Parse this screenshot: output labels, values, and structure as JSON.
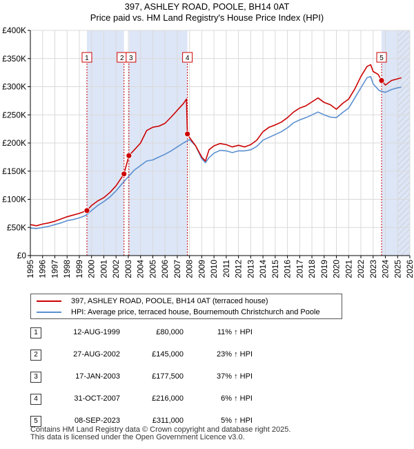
{
  "chart_data": {
    "type": "line",
    "title": "397, ASHLEY ROAD, POOLE, BH14 0AT",
    "subtitle": "Price paid vs. HM Land Registry's House Price Index (HPI)",
    "xlabel": "",
    "ylabel": "",
    "xlim": [
      1995,
      2026
    ],
    "ylim": [
      0,
      400000
    ],
    "y_ticks": [
      0,
      50000,
      100000,
      150000,
      200000,
      250000,
      300000,
      350000,
      400000
    ],
    "y_tick_labels": [
      "£0",
      "£50K",
      "£100K",
      "£150K",
      "£200K",
      "£250K",
      "£300K",
      "£350K",
      "£400K"
    ],
    "x_ticks": [
      1995,
      1996,
      1997,
      1998,
      1999,
      2000,
      2001,
      2002,
      2003,
      2004,
      2005,
      2006,
      2007,
      2008,
      2009,
      2010,
      2011,
      2012,
      2013,
      2014,
      2015,
      2016,
      2017,
      2018,
      2019,
      2020,
      2021,
      2022,
      2023,
      2024,
      2025,
      2026
    ],
    "x_tick_labels": [
      "1995",
      "1996",
      "1997",
      "1998",
      "1999",
      "2000",
      "2001",
      "2002",
      "2003",
      "2004",
      "2005",
      "2006",
      "2007",
      "2008",
      "2009",
      "2010",
      "2011",
      "2012",
      "2013",
      "2014",
      "2015",
      "2016",
      "2017",
      "2018",
      "2019",
      "2020",
      "2021",
      "2022",
      "2023",
      "2024",
      "2025",
      "2026"
    ],
    "grid": true,
    "shaded_periods": [
      [
        1999.62,
        2002.65
      ],
      [
        2003.05,
        2007.83
      ],
      [
        2023.69,
        2026
      ]
    ],
    "hatched_period": [
      2025.0,
      2026
    ],
    "series": [
      {
        "name": "397, ASHLEY ROAD, POOLE, BH14 0AT (terraced house)",
        "color": "#cc0000",
        "x": [
          1995.0,
          1995.5,
          1996.0,
          1996.5,
          1997.0,
          1997.5,
          1998.0,
          1998.5,
          1999.0,
          1999.62,
          2000.0,
          2000.5,
          2001.0,
          2001.5,
          2002.0,
          2002.65,
          2003.05,
          2003.5,
          2004.0,
          2004.5,
          2005.0,
          2005.5,
          2006.0,
          2006.5,
          2007.0,
          2007.5,
          2007.75,
          2007.83,
          2008.0,
          2008.5,
          2009.0,
          2009.3,
          2009.6,
          2010.0,
          2010.5,
          2011.0,
          2011.5,
          2012.0,
          2012.5,
          2013.0,
          2013.5,
          2014.0,
          2014.5,
          2015.0,
          2015.5,
          2016.0,
          2016.5,
          2017.0,
          2017.5,
          2018.0,
          2018.5,
          2019.0,
          2019.5,
          2020.0,
          2020.5,
          2021.0,
          2021.5,
          2022.0,
          2022.5,
          2022.8,
          2023.0,
          2023.4,
          2023.69,
          2024.0,
          2024.5,
          2025.0,
          2025.3
        ],
        "values": [
          55000,
          53000,
          56000,
          58000,
          61000,
          65000,
          69000,
          72000,
          75000,
          80000,
          89000,
          97000,
          103000,
          112000,
          124000,
          145000,
          177500,
          188000,
          200000,
          222000,
          228000,
          230000,
          235000,
          246000,
          258000,
          270000,
          278000,
          216000,
          210000,
          195000,
          175000,
          168000,
          188000,
          195000,
          199000,
          197000,
          193000,
          196000,
          193000,
          197000,
          205000,
          220000,
          228000,
          232000,
          237000,
          245000,
          255000,
          262000,
          266000,
          273000,
          280000,
          272000,
          268000,
          260000,
          270000,
          278000,
          296000,
          318000,
          336000,
          339000,
          327000,
          322000,
          311000,
          303000,
          311000,
          314000,
          316000
        ]
      },
      {
        "name": "HPI: Average price, terraced house, Bournemouth Christchurch and Poole",
        "color": "#5a8fd0",
        "x": [
          1995.0,
          1995.5,
          1996.0,
          1996.5,
          1997.0,
          1997.5,
          1998.0,
          1998.5,
          1999.0,
          1999.5,
          2000.0,
          2000.5,
          2001.0,
          2001.5,
          2002.0,
          2002.5,
          2003.0,
          2003.5,
          2004.0,
          2004.5,
          2005.0,
          2005.5,
          2006.0,
          2006.5,
          2007.0,
          2007.5,
          2008.0,
          2008.5,
          2009.0,
          2009.3,
          2009.6,
          2010.0,
          2010.5,
          2011.0,
          2011.5,
          2012.0,
          2012.5,
          2013.0,
          2013.5,
          2014.0,
          2014.5,
          2015.0,
          2015.5,
          2016.0,
          2016.5,
          2017.0,
          2017.5,
          2018.0,
          2018.5,
          2019.0,
          2019.5,
          2020.0,
          2020.5,
          2021.0,
          2021.5,
          2022.0,
          2022.5,
          2022.8,
          2023.0,
          2023.5,
          2024.0,
          2024.5,
          2025.0,
          2025.3
        ],
        "values": [
          49000,
          48000,
          50000,
          52000,
          55000,
          58000,
          62000,
          64000,
          67000,
          71000,
          80000,
          89000,
          96000,
          104000,
          115000,
          128000,
          140000,
          152000,
          160000,
          168000,
          170000,
          175000,
          180000,
          186000,
          193000,
          200000,
          206000,
          195000,
          172000,
          165000,
          174000,
          182000,
          187000,
          186000,
          183000,
          186000,
          186000,
          188000,
          194000,
          205000,
          210000,
          215000,
          220000,
          227000,
          236000,
          241000,
          245000,
          250000,
          255000,
          250000,
          246000,
          245000,
          254000,
          262000,
          280000,
          298000,
          316000,
          318000,
          305000,
          293000,
          290000,
          295000,
          298000,
          299000
        ]
      }
    ],
    "sale_points": [
      {
        "label": "1",
        "x": 1999.62,
        "value": 80000
      },
      {
        "label": "2",
        "x": 2002.65,
        "value": 145000
      },
      {
        "label": "3",
        "x": 2003.05,
        "value": 177500
      },
      {
        "label": "4",
        "x": 2007.83,
        "value": 216000
      },
      {
        "label": "5",
        "x": 2023.69,
        "value": 311000
      }
    ]
  },
  "legend": {
    "property_label": "397, ASHLEY ROAD, POOLE, BH14 0AT (terraced house)",
    "hpi_label": "HPI: Average price, terraced house, Bournemouth Christchurch and Poole",
    "property_color": "#cc0000",
    "hpi_color": "#5a8fd0"
  },
  "sales": [
    {
      "num": "1",
      "date": "12-AUG-1999",
      "price": "£80,000",
      "hpi": "11% ↑ HPI"
    },
    {
      "num": "2",
      "date": "27-AUG-2002",
      "price": "£145,000",
      "hpi": "23% ↑ HPI"
    },
    {
      "num": "3",
      "date": "17-JAN-2003",
      "price": "£177,500",
      "hpi": "37% ↑ HPI"
    },
    {
      "num": "4",
      "date": "31-OCT-2007",
      "price": "£216,000",
      "hpi": "6% ↑ HPI"
    },
    {
      "num": "5",
      "date": "08-SEP-2023",
      "price": "£311,000",
      "hpi": "5% ↑ HPI"
    }
  ],
  "footer": {
    "line1": "Contains HM Land Registry data © Crown copyright and database right 2025.",
    "line2": "This data is licensed under the Open Government Licence v3.0."
  }
}
